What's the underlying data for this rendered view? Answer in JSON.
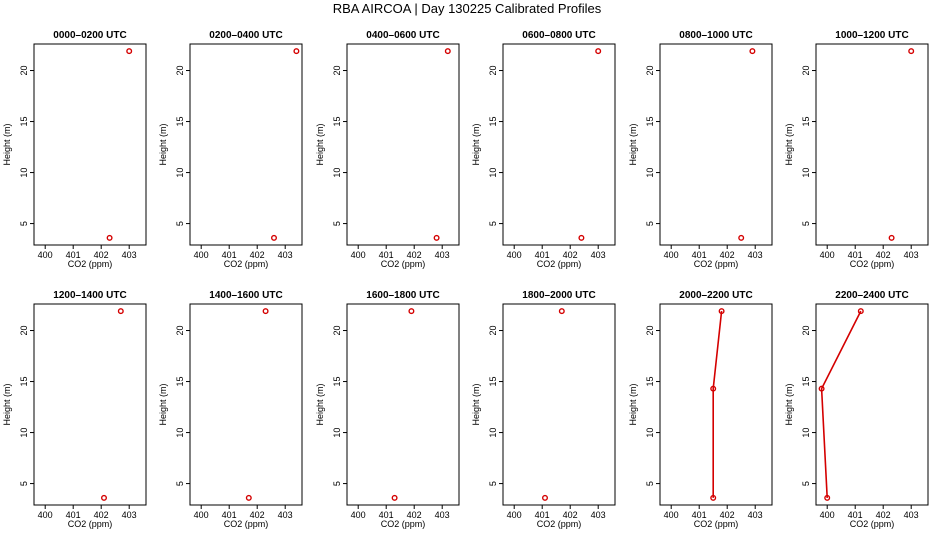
{
  "title": "RBA AIRCOA | Day 130225 Calibrated Profiles",
  "colors": {
    "series": "#d40000",
    "axis": "#000000"
  },
  "chart_data": [
    {
      "type": "line",
      "title": "0000–0200 UTC",
      "xlabel": "CO2 (ppm)",
      "ylabel": "Height (m)",
      "xlim": [
        399.6,
        403.6
      ],
      "ylim": [
        2.9,
        22.6
      ],
      "xticks": [
        "400",
        "401",
        "402",
        "403"
      ],
      "yticks": [
        "5",
        "10",
        "15",
        "20"
      ],
      "points": [
        {
          "x": 402.3,
          "y": 3.6
        },
        {
          "x": 403.0,
          "y": 21.9
        }
      ],
      "draw_lines": false
    },
    {
      "type": "line",
      "title": "0200–0400 UTC",
      "xlabel": "CO2 (ppm)",
      "ylabel": "Height (m)",
      "xlim": [
        399.6,
        403.6
      ],
      "ylim": [
        2.9,
        22.6
      ],
      "xticks": [
        "400",
        "401",
        "402",
        "403"
      ],
      "yticks": [
        "5",
        "10",
        "15",
        "20"
      ],
      "points": [
        {
          "x": 402.6,
          "y": 3.6
        },
        {
          "x": 403.4,
          "y": 21.9
        }
      ],
      "draw_lines": false
    },
    {
      "type": "line",
      "title": "0400–0600 UTC",
      "xlabel": "CO2 (ppm)",
      "ylabel": "Height (m)",
      "xlim": [
        399.6,
        403.6
      ],
      "ylim": [
        2.9,
        22.6
      ],
      "xticks": [
        "400",
        "401",
        "402",
        "403"
      ],
      "yticks": [
        "5",
        "10",
        "15",
        "20"
      ],
      "points": [
        {
          "x": 402.8,
          "y": 3.6
        },
        {
          "x": 403.2,
          "y": 21.9
        }
      ],
      "draw_lines": false
    },
    {
      "type": "line",
      "title": "0600–0800 UTC",
      "xlabel": "CO2 (ppm)",
      "ylabel": "Height (m)",
      "xlim": [
        399.6,
        403.6
      ],
      "ylim": [
        2.9,
        22.6
      ],
      "xticks": [
        "400",
        "401",
        "402",
        "403"
      ],
      "yticks": [
        "5",
        "10",
        "15",
        "20"
      ],
      "points": [
        {
          "x": 402.4,
          "y": 3.6
        },
        {
          "x": 403.0,
          "y": 21.9
        }
      ],
      "draw_lines": false
    },
    {
      "type": "line",
      "title": "0800–1000 UTC",
      "xlabel": "CO2 (ppm)",
      "ylabel": "Height (m)",
      "xlim": [
        399.6,
        403.6
      ],
      "ylim": [
        2.9,
        22.6
      ],
      "xticks": [
        "400",
        "401",
        "402",
        "403"
      ],
      "yticks": [
        "5",
        "10",
        "15",
        "20"
      ],
      "points": [
        {
          "x": 402.5,
          "y": 3.6
        },
        {
          "x": 402.9,
          "y": 21.9
        }
      ],
      "draw_lines": false
    },
    {
      "type": "line",
      "title": "1000–1200 UTC",
      "xlabel": "CO2 (ppm)",
      "ylabel": "Height (m)",
      "xlim": [
        399.6,
        403.6
      ],
      "ylim": [
        2.9,
        22.6
      ],
      "xticks": [
        "400",
        "401",
        "402",
        "403"
      ],
      "yticks": [
        "5",
        "10",
        "15",
        "20"
      ],
      "points": [
        {
          "x": 402.3,
          "y": 3.6
        },
        {
          "x": 403.0,
          "y": 21.9
        }
      ],
      "draw_lines": false
    },
    {
      "type": "line",
      "title": "1200–1400 UTC",
      "xlabel": "CO2 (ppm)",
      "ylabel": "Height (m)",
      "xlim": [
        399.6,
        403.6
      ],
      "ylim": [
        2.9,
        22.6
      ],
      "xticks": [
        "400",
        "401",
        "402",
        "403"
      ],
      "yticks": [
        "5",
        "10",
        "15",
        "20"
      ],
      "points": [
        {
          "x": 402.1,
          "y": 3.6
        },
        {
          "x": 402.7,
          "y": 21.9
        }
      ],
      "draw_lines": false
    },
    {
      "type": "line",
      "title": "1400–1600 UTC",
      "xlabel": "CO2 (ppm)",
      "ylabel": "Height (m)",
      "xlim": [
        399.6,
        403.6
      ],
      "ylim": [
        2.9,
        22.6
      ],
      "xticks": [
        "400",
        "401",
        "402",
        "403"
      ],
      "yticks": [
        "5",
        "10",
        "15",
        "20"
      ],
      "points": [
        {
          "x": 401.7,
          "y": 3.6
        },
        {
          "x": 402.3,
          "y": 21.9
        }
      ],
      "draw_lines": false
    },
    {
      "type": "line",
      "title": "1600–1800 UTC",
      "xlabel": "CO2 (ppm)",
      "ylabel": "Height (m)",
      "xlim": [
        399.6,
        403.6
      ],
      "ylim": [
        2.9,
        22.6
      ],
      "xticks": [
        "400",
        "401",
        "402",
        "403"
      ],
      "yticks": [
        "5",
        "10",
        "15",
        "20"
      ],
      "points": [
        {
          "x": 401.3,
          "y": 3.6
        },
        {
          "x": 401.9,
          "y": 21.9
        }
      ],
      "draw_lines": false
    },
    {
      "type": "line",
      "title": "1800–2000 UTC",
      "xlabel": "CO2 (ppm)",
      "ylabel": "Height (m)",
      "xlim": [
        399.6,
        403.6
      ],
      "ylim": [
        2.9,
        22.6
      ],
      "xticks": [
        "400",
        "401",
        "402",
        "403"
      ],
      "yticks": [
        "5",
        "10",
        "15",
        "20"
      ],
      "points": [
        {
          "x": 401.1,
          "y": 3.6
        },
        {
          "x": 401.7,
          "y": 21.9
        }
      ],
      "draw_lines": false
    },
    {
      "type": "line",
      "title": "2000–2200 UTC",
      "xlabel": "CO2 (ppm)",
      "ylabel": "Height (m)",
      "xlim": [
        399.6,
        403.6
      ],
      "ylim": [
        2.9,
        22.6
      ],
      "xticks": [
        "400",
        "401",
        "402",
        "403"
      ],
      "yticks": [
        "5",
        "10",
        "15",
        "20"
      ],
      "points": [
        {
          "x": 401.5,
          "y": 3.6
        },
        {
          "x": 401.5,
          "y": 14.3
        },
        {
          "x": 401.8,
          "y": 21.9
        }
      ],
      "draw_lines": true
    },
    {
      "type": "line",
      "title": "2200–2400 UTC",
      "xlabel": "CO2 (ppm)",
      "ylabel": "Height (m)",
      "xlim": [
        399.6,
        403.6
      ],
      "ylim": [
        2.9,
        22.6
      ],
      "xticks": [
        "400",
        "401",
        "402",
        "403"
      ],
      "yticks": [
        "5",
        "10",
        "15",
        "20"
      ],
      "points": [
        {
          "x": 400.0,
          "y": 3.6
        },
        {
          "x": 399.8,
          "y": 14.3
        },
        {
          "x": 401.2,
          "y": 21.9
        }
      ],
      "draw_lines": true
    }
  ]
}
